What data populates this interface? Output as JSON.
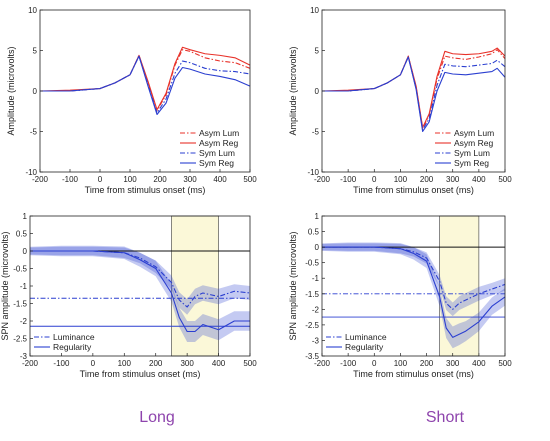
{
  "chart_data": [
    {
      "type": "line",
      "panel": "top-left",
      "xlabel": "Time from stimulus onset (ms)",
      "ylabel": "Amplitude (microvolts)",
      "xlim": [
        -200,
        500
      ],
      "ylim": [
        -10,
        10
      ],
      "xticks": [
        -200,
        -100,
        0,
        100,
        200,
        300,
        400,
        500
      ],
      "yticks": [
        -10,
        -5,
        0,
        5,
        10
      ],
      "grid": false,
      "legend_position": "bottom-right",
      "x": [
        -200,
        -100,
        0,
        50,
        100,
        130,
        160,
        190,
        220,
        250,
        275,
        300,
        350,
        400,
        450,
        500
      ],
      "series": [
        {
          "name": "Asym Lum",
          "color": "#e8322a",
          "style": "dashdot",
          "values": [
            0,
            0,
            0.3,
            1,
            2,
            4.4,
            1,
            -2.4,
            -0.5,
            3.2,
            5.1,
            4.9,
            4.1,
            3.7,
            3.5,
            2.8
          ]
        },
        {
          "name": "Asym Reg",
          "color": "#e8322a",
          "style": "solid",
          "values": [
            0,
            0.1,
            0.3,
            1,
            2,
            4.4,
            1.2,
            -2.3,
            -0.3,
            3.4,
            5.4,
            5.1,
            4.6,
            4.4,
            4.1,
            3.2
          ]
        },
        {
          "name": "Sym Lum",
          "color": "#2b3fd0",
          "style": "dashdot",
          "values": [
            0,
            0,
            0.3,
            1,
            2,
            4.3,
            0.8,
            -2.7,
            -1,
            2.2,
            3.7,
            3.5,
            2.8,
            2.5,
            2.4,
            2.1
          ]
        },
        {
          "name": "Sym Reg",
          "color": "#2b3fd0",
          "style": "solid",
          "values": [
            0,
            0,
            0.3,
            1,
            2,
            4.3,
            0.6,
            -2.9,
            -1.5,
            1.6,
            2.9,
            2.7,
            2.1,
            1.8,
            1.4,
            0.6
          ]
        }
      ]
    },
    {
      "type": "line",
      "panel": "top-right",
      "xlabel": "Time from stimulus onset (ms)",
      "ylabel": "Amplitude (microvolts)",
      "xlim": [
        -200,
        500
      ],
      "ylim": [
        -10,
        10
      ],
      "xticks": [
        -200,
        -100,
        0,
        100,
        200,
        300,
        400,
        500
      ],
      "yticks": [
        -10,
        -5,
        0,
        5,
        10
      ],
      "grid": false,
      "legend_position": "bottom-right",
      "x": [
        -200,
        -100,
        0,
        50,
        100,
        130,
        160,
        185,
        210,
        240,
        270,
        300,
        350,
        400,
        450,
        470,
        500
      ],
      "series": [
        {
          "name": "Asym Lum",
          "color": "#e8322a",
          "style": "dashdot",
          "values": [
            0,
            0,
            0.3,
            1,
            2,
            4.3,
            0.5,
            -4.6,
            -3,
            1.5,
            4.3,
            4.1,
            3.9,
            4.2,
            4.6,
            5.1,
            4
          ],
          "_": ""
        },
        {
          "name": "Asym Reg",
          "color": "#e8322a",
          "style": "solid",
          "values": [
            0,
            0.1,
            0.3,
            1,
            2,
            4.3,
            0.6,
            -4.5,
            -2.8,
            1.8,
            4.9,
            4.6,
            4.5,
            4.6,
            4.9,
            5.3,
            4.3
          ]
        },
        {
          "name": "Sym Lum",
          "color": "#2b3fd0",
          "style": "dashdot",
          "values": [
            0,
            0,
            0.3,
            1,
            2,
            4.2,
            0.3,
            -4.8,
            -3.4,
            0.7,
            3.3,
            3.1,
            3,
            3.2,
            3.4,
            3.8,
            3
          ]
        },
        {
          "name": "Sym Reg",
          "color": "#2b3fd0",
          "style": "solid",
          "values": [
            0,
            0,
            0.3,
            1,
            2,
            4.2,
            0.2,
            -5,
            -3.8,
            0,
            2.3,
            2.1,
            2,
            2.2,
            2.4,
            2.8,
            1.7
          ]
        }
      ]
    },
    {
      "type": "line",
      "panel": "bottom-left",
      "xlabel": "Time from stimulus onset (ms)",
      "ylabel": "SPN amplitude (microvolts)",
      "xlim": [
        -200,
        500
      ],
      "ylim": [
        -3,
        1
      ],
      "xticks": [
        -200,
        -100,
        0,
        100,
        200,
        300,
        400,
        500
      ],
      "yticks": [
        -3,
        -2.5,
        -2,
        -1.5,
        -1,
        -0.5,
        0,
        0.5,
        1
      ],
      "grid": false,
      "legend_position": "bottom-left",
      "highlight_window": [
        250,
        400
      ],
      "zero_line": 0,
      "x": [
        -200,
        -100,
        0,
        100,
        150,
        200,
        250,
        275,
        300,
        325,
        350,
        400,
        450,
        500
      ],
      "series": [
        {
          "name": "Luminance",
          "color": "#2b3fd0",
          "style": "dashdot",
          "reference_line": -1.35,
          "values": [
            0,
            0,
            0,
            -0.05,
            -0.2,
            -0.45,
            -0.9,
            -1.4,
            -1.6,
            -1.3,
            -1.2,
            -1.3,
            -1.15,
            -1.2
          ],
          "ci_halfwidth": [
            0.1,
            0.12,
            0.12,
            0.15,
            0.15,
            0.18,
            0.2,
            0.22,
            0.22,
            0.22,
            0.22,
            0.22,
            0.2,
            0.2
          ]
        },
        {
          "name": "Regularity",
          "color": "#2b3fd0",
          "style": "solid",
          "reference_line": -2.15,
          "values": [
            0,
            0,
            0,
            -0.05,
            -0.25,
            -0.5,
            -1.2,
            -1.9,
            -2.3,
            -2.3,
            -2.1,
            -2.25,
            -2,
            -2
          ],
          "ci_halfwidth": [
            0.12,
            0.15,
            0.15,
            0.18,
            0.2,
            0.22,
            0.25,
            0.28,
            0.3,
            0.3,
            0.3,
            0.3,
            0.28,
            0.28
          ]
        }
      ]
    },
    {
      "type": "line",
      "panel": "bottom-right",
      "xlabel": "Time from stimulus onset (ms)",
      "ylabel": "SPN amplitude (microvolts)",
      "xlim": [
        -200,
        500
      ],
      "ylim": [
        -3.5,
        1
      ],
      "xticks": [
        -200,
        -100,
        0,
        100,
        200,
        300,
        400,
        500
      ],
      "yticks": [
        -3.5,
        -3,
        -2.5,
        -2,
        -1.5,
        -1,
        -0.5,
        0,
        0.5,
        1
      ],
      "grid": false,
      "legend_position": "bottom-left",
      "highlight_window": [
        250,
        400
      ],
      "zero_line": 0,
      "x": [
        -200,
        -100,
        0,
        100,
        150,
        200,
        250,
        275,
        300,
        325,
        350,
        400,
        450,
        500
      ],
      "series": [
        {
          "name": "Luminance",
          "color": "#2b3fd0",
          "style": "dashdot",
          "reference_line": -1.5,
          "values": [
            0,
            0,
            0,
            -0.05,
            -0.15,
            -0.35,
            -1.1,
            -1.8,
            -2,
            -1.8,
            -1.7,
            -1.5,
            -1.35,
            -1.2
          ],
          "ci_halfwidth": [
            0.1,
            0.12,
            0.12,
            0.15,
            0.15,
            0.18,
            0.2,
            0.22,
            0.22,
            0.22,
            0.22,
            0.22,
            0.2,
            0.2
          ]
        },
        {
          "name": "Regularity",
          "color": "#2b3fd0",
          "style": "solid",
          "reference_line": -2.25,
          "values": [
            0,
            0,
            0,
            -0.05,
            -0.2,
            -0.45,
            -1.6,
            -2.6,
            -2.9,
            -2.8,
            -2.7,
            -2.4,
            -1.9,
            -1.6
          ],
          "ci_halfwidth": [
            0.12,
            0.15,
            0.15,
            0.18,
            0.2,
            0.22,
            0.3,
            0.32,
            0.35,
            0.35,
            0.32,
            0.3,
            0.28,
            0.28
          ]
        }
      ]
    }
  ],
  "captions": {
    "left": "Long",
    "right": "Short"
  }
}
